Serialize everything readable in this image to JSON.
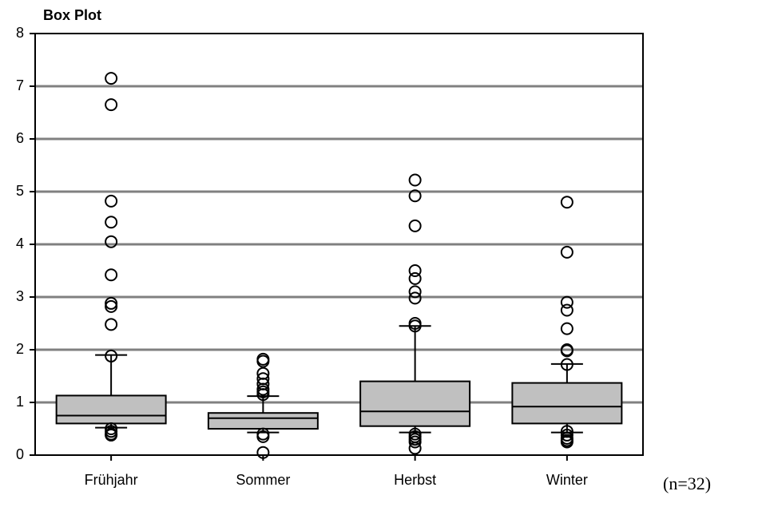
{
  "chart_data": {
    "type": "box",
    "title": "Box Plot",
    "annotation": "(n=32)",
    "categories": [
      "Frühjahr",
      "Sommer",
      "Herbst",
      "Winter"
    ],
    "color": "#c0c0c0",
    "grid": true,
    "ylim": [
      0,
      8
    ],
    "yticks": [
      0,
      1,
      2,
      3,
      4,
      5,
      6,
      7,
      8
    ],
    "boxes": [
      {
        "whisker_low": 0.52,
        "q1": 0.6,
        "median": 0.75,
        "q3": 1.13,
        "whisker_high": 1.9,
        "outliers": [
          7.15,
          6.65,
          4.82,
          4.42,
          4.05,
          3.42,
          2.88,
          2.82,
          2.48,
          1.88,
          0.5,
          0.45,
          0.4,
          0.38
        ]
      },
      {
        "whisker_low": 0.43,
        "q1": 0.5,
        "median": 0.7,
        "q3": 0.8,
        "whisker_high": 1.12,
        "outliers": [
          1.82,
          1.78,
          1.55,
          1.45,
          1.35,
          1.25,
          1.2,
          1.15,
          0.4,
          0.35,
          0.05
        ]
      },
      {
        "whisker_low": 0.43,
        "q1": 0.55,
        "median": 0.83,
        "q3": 1.4,
        "whisker_high": 2.45,
        "outliers": [
          5.22,
          4.92,
          4.35,
          3.5,
          3.35,
          3.1,
          2.98,
          2.5,
          2.45,
          0.4,
          0.35,
          0.3,
          0.25,
          0.13
        ]
      },
      {
        "whisker_low": 0.43,
        "q1": 0.6,
        "median": 0.92,
        "q3": 1.37,
        "whisker_high": 1.73,
        "outliers": [
          4.8,
          3.85,
          2.9,
          2.75,
          2.4,
          2.0,
          1.98,
          1.72,
          0.45,
          0.38,
          0.32,
          0.28,
          0.25
        ]
      }
    ]
  }
}
